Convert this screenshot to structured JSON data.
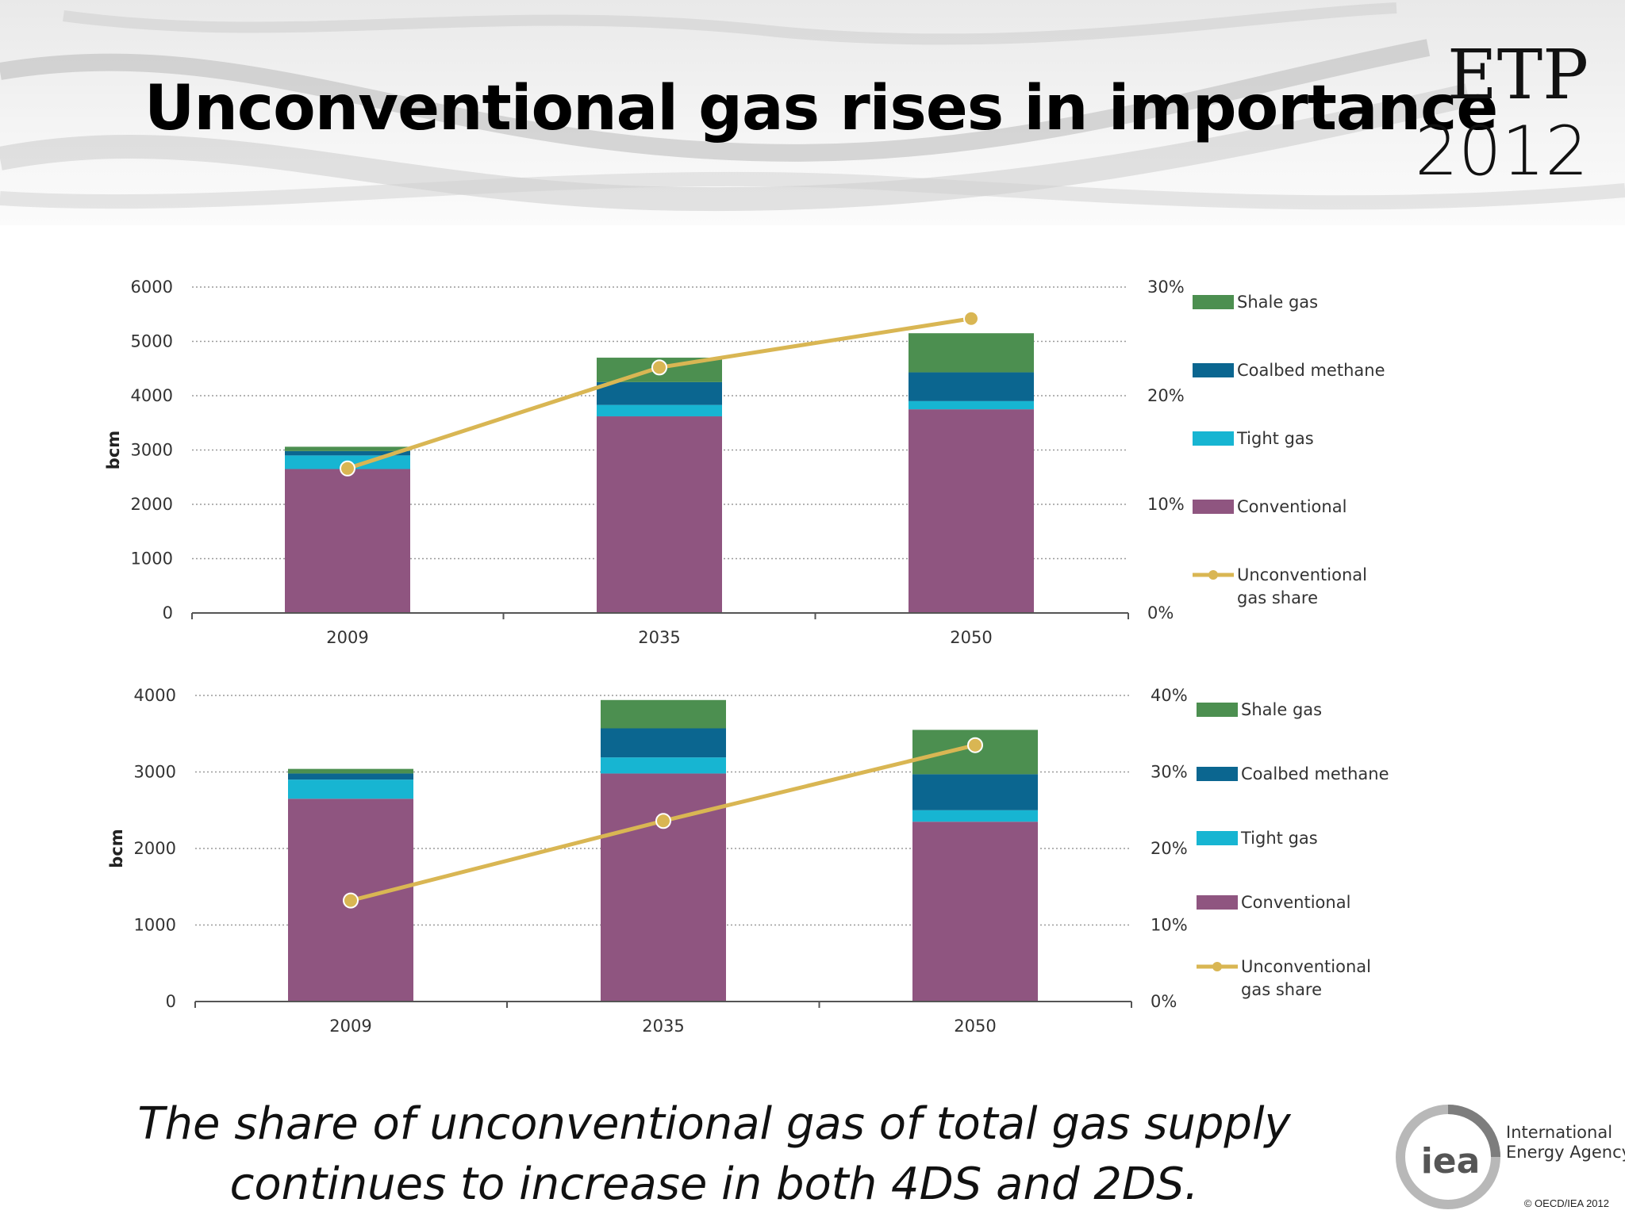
{
  "slide": {
    "title": "Unconventional gas rises in importance",
    "badge_line1": "ETP",
    "badge_line2": "2012",
    "caption": "The share of unconventional gas of total gas supply continues to increase in both 4DS and 2DS.",
    "org_name_line1": "International",
    "org_name_line2": "Energy Agency",
    "logo_text": "iea",
    "copyright": "© OECD/IEA 2012"
  },
  "chart_data": [
    {
      "type": "bar",
      "stacked": true,
      "categories": [
        "2009",
        "2035",
        "2050"
      ],
      "ylabel": "bcm",
      "ylim": [
        0,
        6000
      ],
      "yticks": [
        0,
        1000,
        2000,
        3000,
        4000,
        5000,
        6000
      ],
      "y2lim": [
        0,
        30
      ],
      "y2ticks": [
        "0%",
        "10%",
        "20%",
        "30%"
      ],
      "grid": true,
      "legend_position": "right",
      "series": [
        {
          "name": "Conventional",
          "color": "#8f5580",
          "values": [
            2650,
            3620,
            3750
          ]
        },
        {
          "name": "Tight gas",
          "color": "#17b5d2",
          "values": [
            250,
            210,
            150
          ]
        },
        {
          "name": "Coalbed methane",
          "color": "#0b6690",
          "values": [
            80,
            420,
            530
          ]
        },
        {
          "name": "Shale gas",
          "color": "#4c8f50",
          "values": [
            80,
            450,
            720
          ]
        }
      ],
      "line_series": {
        "name": "Unconventional gas share",
        "color": "#d9b653",
        "axis": "y2",
        "values": [
          13.3,
          22.6,
          27.1
        ]
      },
      "legend": [
        "Shale gas",
        "Coalbed methane",
        "Tight gas",
        "Conventional",
        "Unconventional gas share"
      ]
    },
    {
      "type": "bar",
      "stacked": true,
      "categories": [
        "2009",
        "2035",
        "2050"
      ],
      "ylabel": "bcm",
      "ylim": [
        0,
        4000
      ],
      "yticks": [
        0,
        1000,
        2000,
        3000,
        4000
      ],
      "y2lim": [
        0,
        40
      ],
      "y2ticks": [
        "0%",
        "10%",
        "20%",
        "30%",
        "40%"
      ],
      "grid": true,
      "legend_position": "right",
      "series": [
        {
          "name": "Conventional",
          "color": "#8f5580",
          "values": [
            2650,
            2980,
            2350
          ]
        },
        {
          "name": "Tight gas",
          "color": "#17b5d2",
          "values": [
            250,
            210,
            150
          ]
        },
        {
          "name": "Coalbed methane",
          "color": "#0b6690",
          "values": [
            80,
            380,
            470
          ]
        },
        {
          "name": "Shale gas",
          "color": "#4c8f50",
          "values": [
            60,
            370,
            580
          ]
        }
      ],
      "line_series": {
        "name": "Unconventional gas share",
        "color": "#d9b653",
        "axis": "y2",
        "values": [
          13.2,
          23.6,
          33.5
        ]
      },
      "legend": [
        "Shale gas",
        "Coalbed methane",
        "Tight gas",
        "Conventional",
        "Unconventional gas share"
      ]
    }
  ]
}
